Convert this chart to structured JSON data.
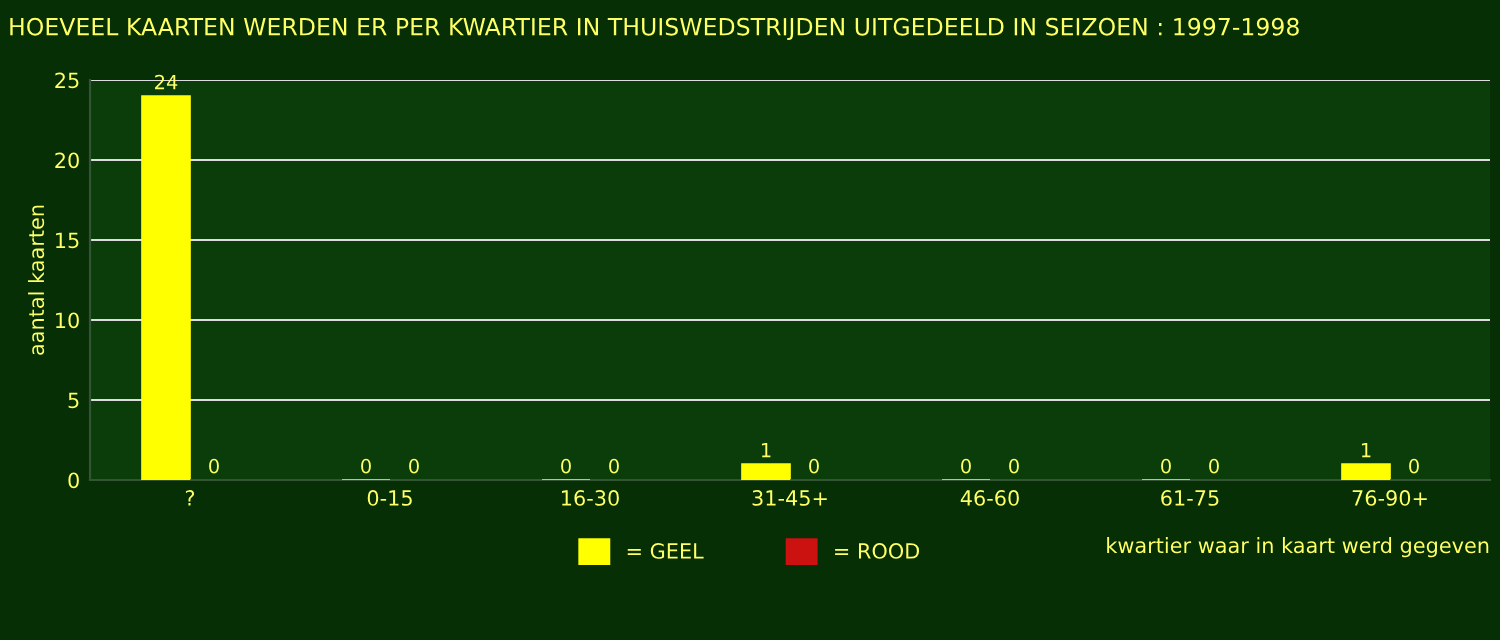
{
  "chart_data": {
    "type": "bar",
    "title": "HOEVEEL KAARTEN WERDEN ER PER KWARTIER IN THUISWEDSTRIJDEN UITGEDEELD IN SEIZOEN : 1997-1998",
    "xlabel": "kwartier waar in kaart werd gegeven",
    "ylabel": "aantal kaarten",
    "categories": [
      "?",
      "0-15",
      "16-30",
      "31-45+",
      "46-60",
      "61-75",
      "76-90+"
    ],
    "series": [
      {
        "name": "= GEEL",
        "color": "#ffff00",
        "values": [
          24,
          0,
          0,
          1,
          0,
          0,
          1
        ]
      },
      {
        "name": "= ROOD",
        "color": "#cc1111",
        "values": [
          0,
          0,
          0,
          0,
          0,
          0,
          0
        ]
      }
    ],
    "ylim": [
      0,
      25
    ],
    "yticks": [
      0,
      5,
      10,
      15,
      20,
      25
    ],
    "grid": "y",
    "legend": "bottom",
    "data_labels": true
  }
}
